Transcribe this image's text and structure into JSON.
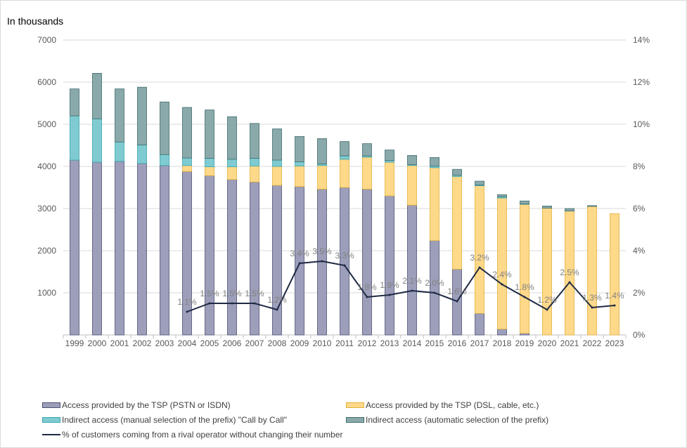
{
  "chart_data": {
    "type": "bar",
    "unit_label": "In thousands",
    "categories": [
      "1999",
      "2000",
      "2001",
      "2002",
      "2003",
      "2004",
      "2005",
      "2006",
      "2007",
      "2008",
      "2009",
      "2010",
      "2011",
      "2012",
      "2013",
      "2014",
      "2015",
      "2016",
      "2017",
      "2018",
      "2019",
      "2020",
      "2021",
      "2022",
      "2023"
    ],
    "left_axis": {
      "ylim": [
        0,
        7000
      ],
      "ticks": [
        "",
        "1000",
        "2000",
        "3000",
        "4000",
        "5000",
        "6000",
        "7000"
      ]
    },
    "right_axis": {
      "ylim": [
        0,
        14
      ],
      "ticks": [
        "0%",
        "2%",
        "4%",
        "6%",
        "8%",
        "10%",
        "12%",
        "14%"
      ]
    },
    "grid": true,
    "legend_position": "bottom",
    "series": [
      {
        "name": "Access provided by the TSP (PSTN or ISDN)",
        "color": "#9d9fba",
        "edge": "#4e5074",
        "values": [
          4150,
          4100,
          4120,
          4070,
          4020,
          3880,
          3780,
          3690,
          3630,
          3550,
          3520,
          3460,
          3500,
          3460,
          3300,
          3080,
          2240,
          1560,
          510,
          140,
          40,
          0,
          0,
          0,
          0
        ]
      },
      {
        "name": "Access provided by the TSP (DSL, cable, etc.)",
        "color": "#ffd98a",
        "edge": "#e2b13a",
        "values": [
          0,
          0,
          0,
          0,
          0,
          140,
          210,
          300,
          380,
          450,
          490,
          560,
          670,
          760,
          800,
          940,
          1730,
          2200,
          3030,
          3110,
          3060,
          3010,
          2940,
          3050,
          2880
        ]
      },
      {
        "name": "Indirect access (manual selection of the prefix) \"Call by Call\"",
        "color": "#7fcbd1",
        "edge": "#3aa6b0",
        "values": [
          1050,
          1030,
          460,
          440,
          260,
          180,
          200,
          180,
          180,
          150,
          100,
          40,
          80,
          30,
          40,
          20,
          40,
          30,
          20,
          30,
          10,
          0,
          0,
          0,
          0
        ]
      },
      {
        "name": "Indirect access (automatic selection of the prefix)",
        "color": "#8aa9aa",
        "edge": "#3f6b6c",
        "values": [
          640,
          1080,
          1260,
          1370,
          1250,
          1200,
          1150,
          1010,
          830,
          740,
          600,
          600,
          340,
          290,
          250,
          220,
          200,
          140,
          90,
          50,
          70,
          50,
          60,
          20,
          0
        ]
      },
      {
        "name": "% of customers coming from a rival operator without changing their number",
        "color": "#1f2a44",
        "axis": "right",
        "values": [
          null,
          null,
          null,
          null,
          null,
          1.1,
          1.5,
          1.5,
          1.5,
          1.2,
          3.4,
          3.5,
          3.3,
          1.8,
          1.9,
          2.1,
          2.0,
          1.6,
          3.2,
          2.4,
          1.8,
          1.2,
          2.5,
          1.3,
          1.4
        ],
        "labels": [
          "",
          "",
          "",
          "",
          "",
          "1.1%",
          "1.5%",
          "1.5%",
          "1.5%",
          "1.2%",
          "3.4%",
          "3.5%",
          "3.3%",
          "1.8%",
          "1.9%",
          "2.1%",
          "2.0%",
          "1.6%",
          "3.2%",
          "2.4%",
          "1.8%",
          "1.2%",
          "2.5%",
          "1.3%",
          "1.4%"
        ]
      }
    ]
  }
}
